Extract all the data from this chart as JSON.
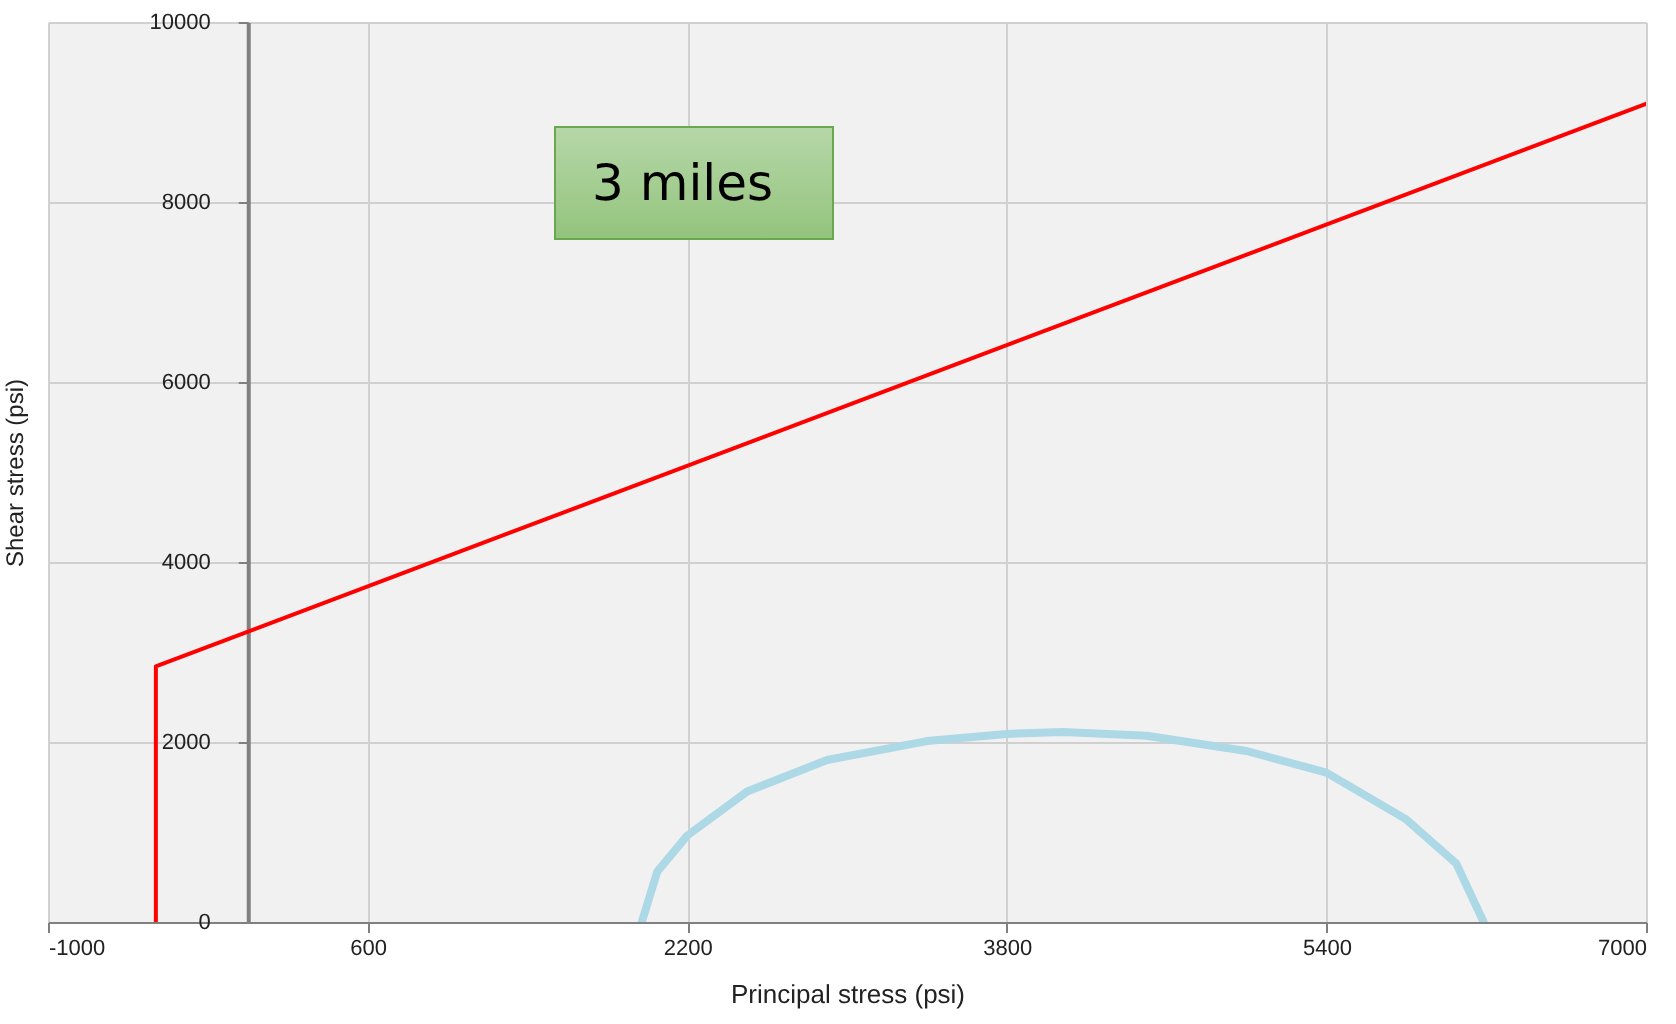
{
  "chart_data": {
    "type": "line",
    "xlabel": "Principal stress (psi)",
    "ylabel": "Shear stress (psi)",
    "annotations": [
      "3 miles"
    ],
    "xlim": [
      -1000,
      7000
    ],
    "xticks": [
      -1000,
      600,
      2200,
      3800,
      5400,
      7000
    ],
    "ylim": [
      0,
      10000
    ],
    "yticks": [
      0,
      2000,
      4000,
      6000,
      8000,
      10000
    ],
    "grid": true,
    "series": [
      {
        "color": "#ff0000",
        "x": [
          -460,
          -460,
          7000
        ],
        "values": [
          0,
          2840,
          9090
        ]
      },
      {
        "color": "#add8e6",
        "x": [
          1973,
          2050,
          2200,
          2500,
          2900,
          3400,
          3800,
          4080,
          4500,
          5000,
          5400,
          5800,
          6050,
          6187
        ],
        "values": [
          0,
          560,
          960,
          1450,
          1800,
          2010,
          2090,
          2110,
          2070,
          1900,
          1660,
          1140,
          650,
          0
        ]
      }
    ]
  }
}
